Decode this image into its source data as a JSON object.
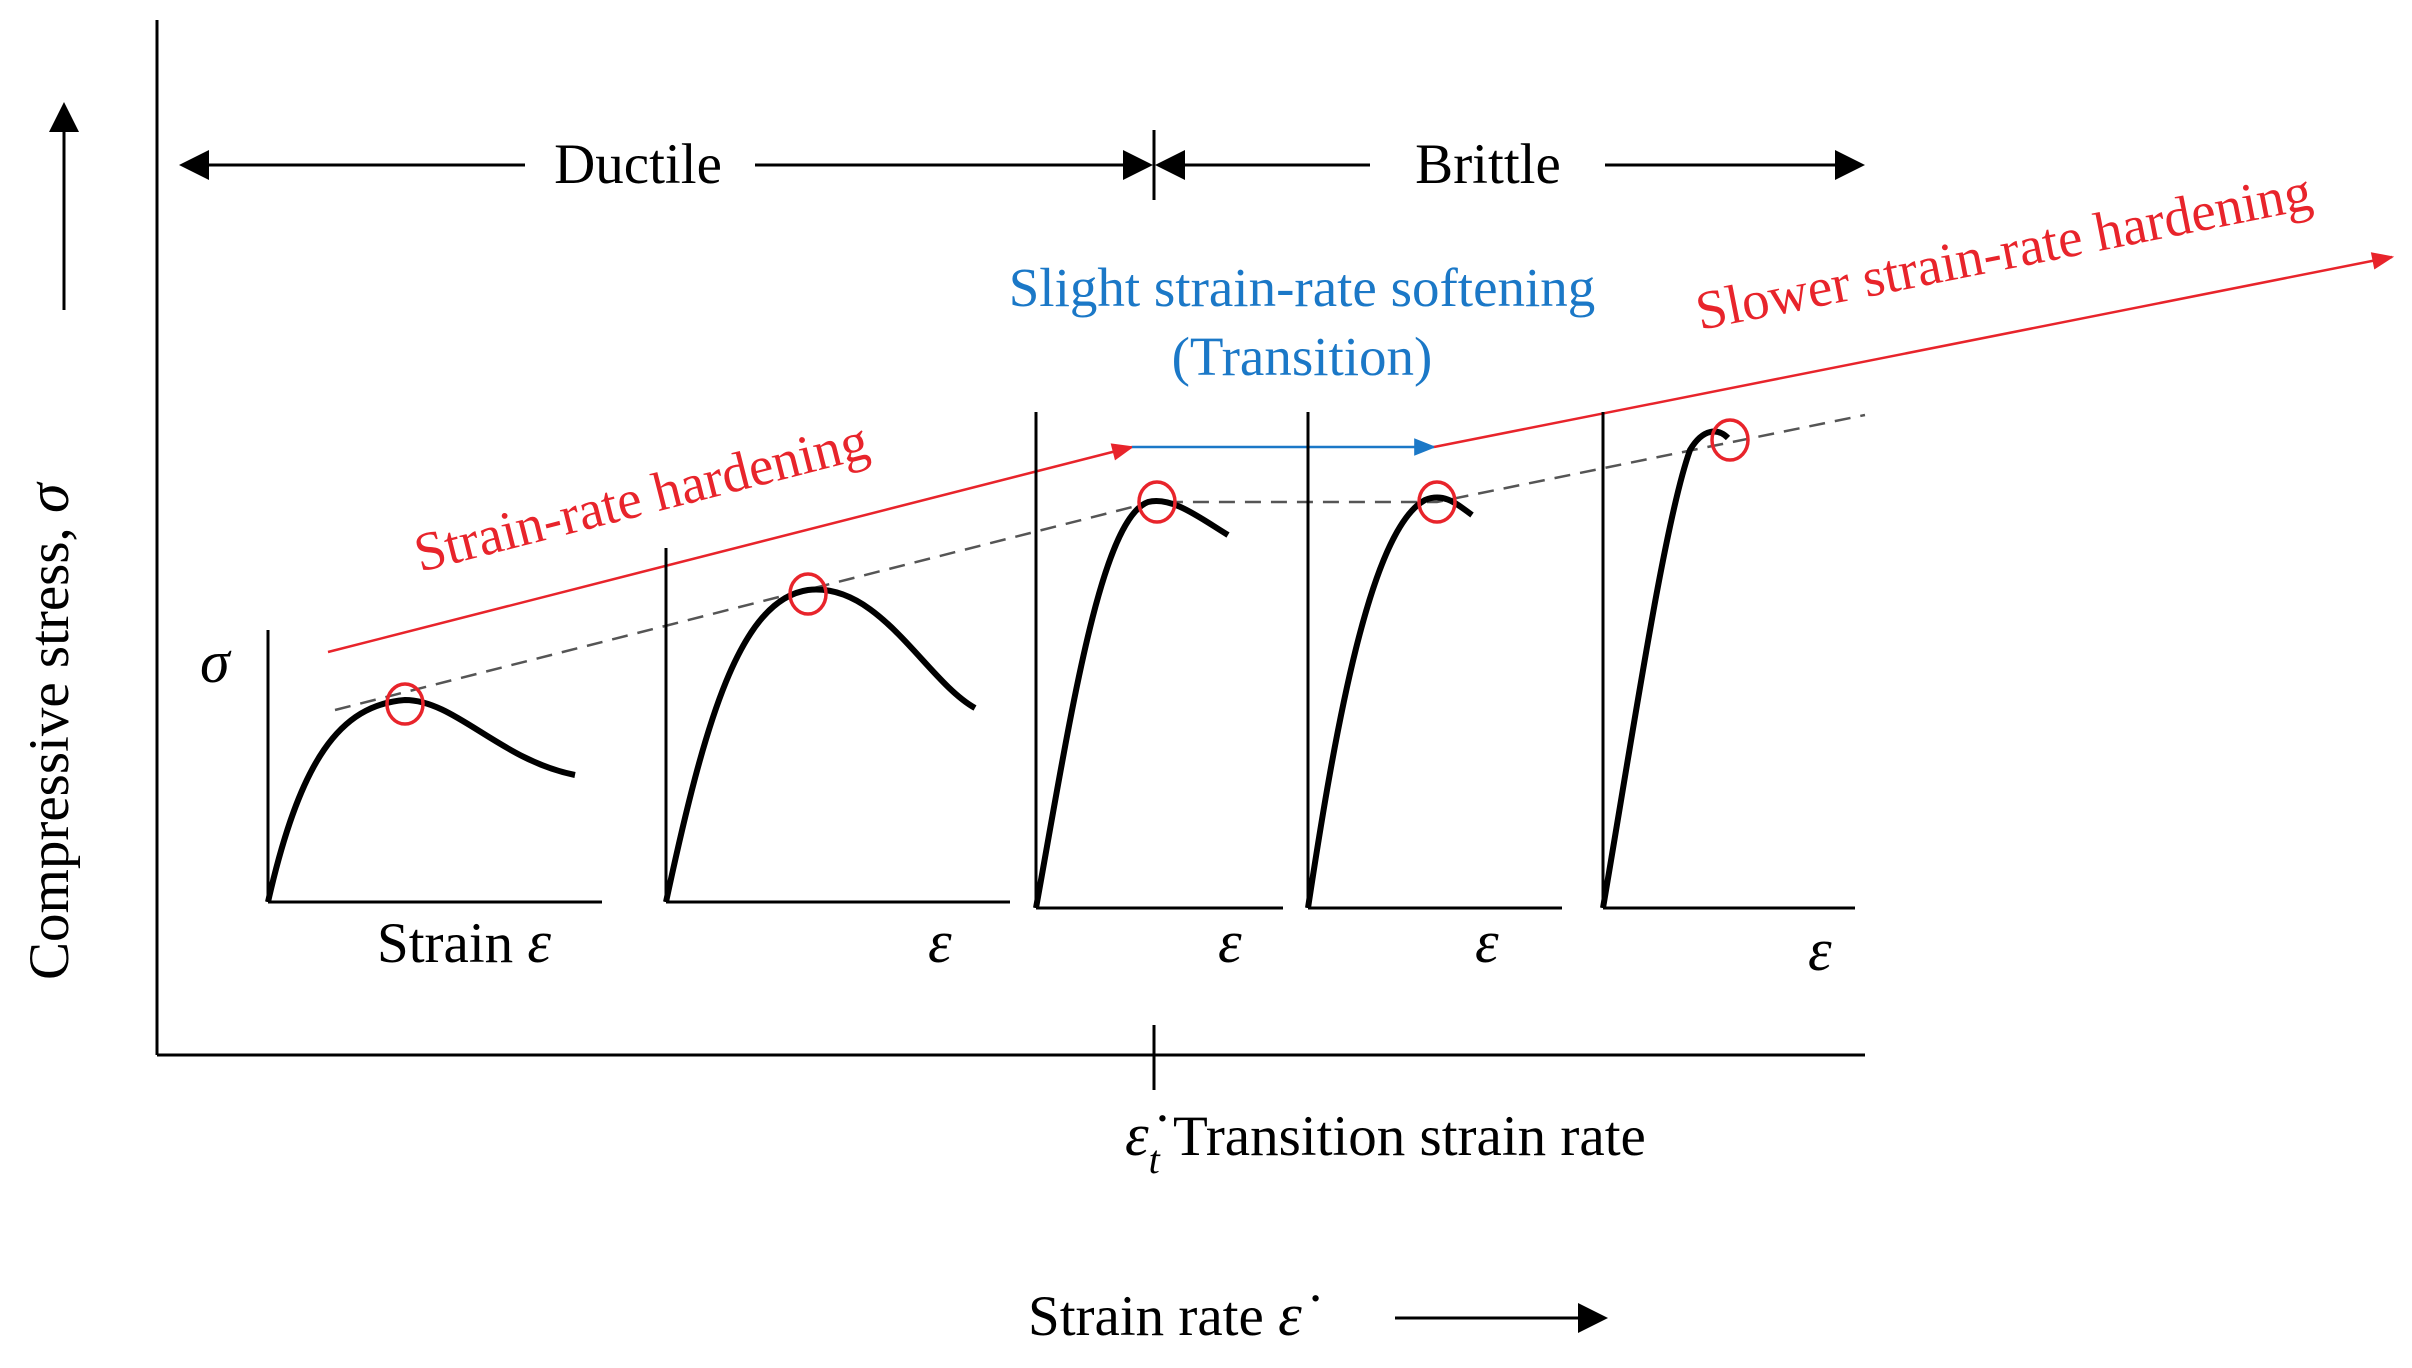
{
  "colors": {
    "black": "#000000",
    "red": "#e8242b",
    "blue": "#1b78c7",
    "dash": "#555555"
  },
  "y_axis_label": "Compressive stress, ",
  "y_axis_symbol": "σ",
  "x_axis_label": "Strain rate ",
  "x_axis_symbol": "ε̇",
  "regions": {
    "ductile": "Ductile",
    "brittle": "Brittle"
  },
  "annotations": {
    "hardening": "Strain-rate hardening",
    "softening_line1": "Slight strain-rate softening",
    "softening_line2": "(Transition)",
    "slower_hardening": "Slower strain-rate hardening"
  },
  "transition": {
    "symbol": "ε̇",
    "subscript": "t",
    "label": " Transition strain rate"
  },
  "insets": [
    {
      "y_label": "σ",
      "x_label_prefix": "Strain ",
      "x_symbol": "ε",
      "shape": "ductile-wide"
    },
    {
      "y_label": "",
      "x_label_prefix": "",
      "x_symbol": "ε",
      "shape": "ductile"
    },
    {
      "y_label": "",
      "x_label_prefix": "",
      "x_symbol": "ε",
      "shape": "transition"
    },
    {
      "y_label": "",
      "x_label_prefix": "",
      "x_symbol": "ε",
      "shape": "brittle-soft"
    },
    {
      "y_label": "",
      "x_label_prefix": "",
      "x_symbol": "ε",
      "shape": "brittle"
    }
  ]
}
